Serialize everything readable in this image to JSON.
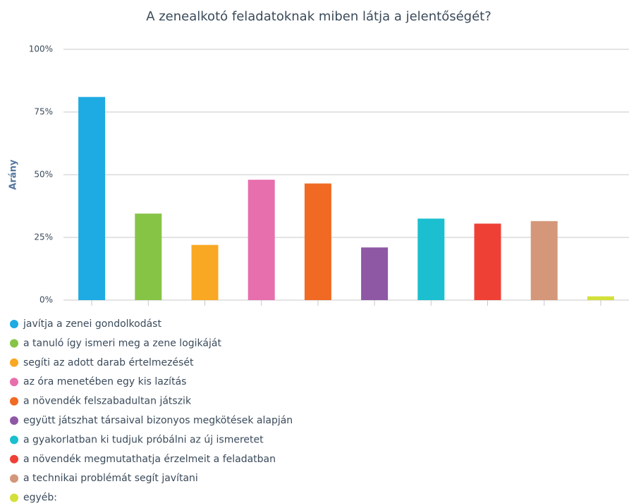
{
  "chart_data": {
    "type": "bar",
    "title": "A zenealkotó feladatoknak miben látja a jelentőségét?",
    "y_label": "Arány",
    "categories": [
      "javítja a zenei gondolkodást",
      "a tanuló így ismeri meg a zene logikáját",
      "segíti az adott darab értelmezését",
      "az óra menetében egy kis lazítás",
      "a növendék felszabadultan játszik",
      "együtt játszhat társaival bizonyos megkötések alapján",
      "a gyakorlatban ki tudjuk próbálni az új ismeretet",
      "a növendék megmutathatja érzelmeit a feladatban",
      "a technikai problémát segít javítani",
      "egyéb:"
    ],
    "values": [
      81,
      34.5,
      22,
      48,
      46.5,
      21,
      32.5,
      30.5,
      31.5,
      1.5
    ],
    "colors": [
      "#1eaae2",
      "#86c446",
      "#f9a823",
      "#e76fad",
      "#f06a24",
      "#8e58a5",
      "#1bbfcf",
      "#ef4036",
      "#d4977a",
      "#d3e03a"
    ],
    "ylim": [
      0,
      100
    ],
    "yticks": [
      {
        "value": 0,
        "label": "0%"
      },
      {
        "value": 25,
        "label": "25%"
      },
      {
        "value": 50,
        "label": "50%"
      },
      {
        "value": 75,
        "label": "75%"
      },
      {
        "value": 100,
        "label": "100%"
      }
    ],
    "grid": true,
    "legend": "bottom"
  }
}
